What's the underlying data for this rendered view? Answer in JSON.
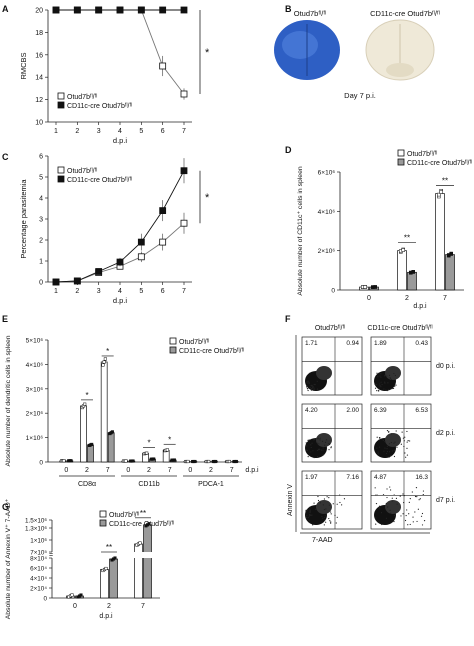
{
  "panel_letters": [
    "A",
    "B",
    "C",
    "D",
    "E",
    "F",
    "G"
  ],
  "colors": {
    "filled": "#111111",
    "open": "#ffffff",
    "gray_bar": "#9a9a9a",
    "axis": "#222222",
    "brain_blue": "#2e5fc4",
    "brain_white": "#efe9d8"
  },
  "legend": {
    "wt": "Otud7bᶠˡ/ᶠˡ",
    "cko": "CD11c-cre Otud7bᶠˡ/ᶠˡ"
  },
  "panelB": {
    "label_wt": "Otud7bᶠˡ/ᶠˡ",
    "label_cko": "CD11c-cre Otud7bᶠˡ/ᶠˡ",
    "caption": "Day 7 p.i."
  },
  "panelF": {
    "col_wt": "Otud7bᶠˡ/ᶠˡ",
    "col_cko": "CD11c-cre Otud7bᶠˡ/ᶠˡ",
    "row_labels": [
      "d0 p.i.",
      "d2 p.i.",
      "d7 p.i."
    ],
    "ylabel": "Annexin V",
    "xlabel": "7-AAD",
    "quads": [
      {
        "wt_ul": "1.71",
        "wt_ur": "0.94",
        "cko_ul": "1.89",
        "cko_ur": "0.43"
      },
      {
        "wt_ul": "4.20",
        "wt_ur": "2.00",
        "cko_ul": "6.39",
        "cko_ur": "6.53"
      },
      {
        "wt_ul": "1.97",
        "wt_ur": "7.16",
        "cko_ul": "4.87",
        "cko_ur": "16.3"
      }
    ]
  },
  "chart_data": [
    {
      "id": "A",
      "type": "line",
      "xlabel": "d.p.i",
      "ylabel": "RMCBS",
      "x": [
        1,
        2,
        3,
        4,
        5,
        6,
        7
      ],
      "xticks": [
        "1",
        "2",
        "3",
        "4",
        "5",
        "6",
        "7"
      ],
      "ylim": [
        10,
        20
      ],
      "yticks": [
        "10",
        "12",
        "14",
        "16",
        "18",
        "20"
      ],
      "series": [
        {
          "name": "Otud7bᶠˡ/ᶠˡ",
          "marker": "open",
          "values": [
            20,
            20,
            20,
            20,
            20,
            15,
            12.5
          ],
          "err": [
            0,
            0,
            0,
            0,
            0,
            0.9,
            0.5
          ]
        },
        {
          "name": "CD11c-cre Otud7bᶠˡ/ᶠˡ",
          "marker": "filled",
          "values": [
            20,
            20,
            20,
            20,
            20,
            20,
            20
          ],
          "err": [
            0,
            0,
            0,
            0,
            0,
            0,
            0
          ]
        }
      ],
      "significance": "*"
    },
    {
      "id": "C",
      "type": "line",
      "xlabel": "d.p.i",
      "ylabel": "Percentage parasitemia",
      "x": [
        1,
        2,
        3,
        4,
        5,
        6,
        7
      ],
      "xticks": [
        "1",
        "2",
        "3",
        "4",
        "5",
        "6",
        "7"
      ],
      "ylim": [
        0,
        6
      ],
      "yticks": [
        "0",
        "1",
        "2",
        "3",
        "4",
        "5",
        "6"
      ],
      "series": [
        {
          "name": "Otud7bᶠˡ/ᶠˡ",
          "marker": "open",
          "values": [
            0,
            0.05,
            0.45,
            0.75,
            1.2,
            1.9,
            2.8
          ],
          "err": [
            0,
            0,
            0.1,
            0.15,
            0.25,
            0.4,
            0.5
          ]
        },
        {
          "name": "CD11c-cre Otud7bᶠˡ/ᶠˡ",
          "marker": "filled",
          "values": [
            0,
            0.05,
            0.5,
            0.95,
            1.9,
            3.4,
            5.3
          ],
          "err": [
            0,
            0,
            0.1,
            0.2,
            0.4,
            0.5,
            0.6
          ]
        }
      ],
      "significance": "*"
    },
    {
      "id": "D",
      "type": "bar",
      "xlabel": "d.p.i",
      "ylabel": "Absolute number of CD11c⁺ cells in spleen",
      "categories": [
        "0",
        "2",
        "7"
      ],
      "ylim": [
        0,
        6000000
      ],
      "yticks": [
        "0",
        "2×10⁶",
        "4×10⁶",
        "6×10⁶"
      ],
      "series": [
        {
          "name": "Otud7bᶠˡ/ᶠˡ",
          "values": [
            150000,
            2000000,
            4900000
          ]
        },
        {
          "name": "CD11c-cre Otud7bᶠˡ/ᶠˡ",
          "values": [
            150000,
            900000,
            1800000
          ]
        }
      ],
      "significance": [
        "",
        "**",
        "**"
      ]
    },
    {
      "id": "E",
      "type": "bar",
      "xlabel": "d.p.i",
      "ylabel": "Absolute number of dendritic cells in spleen",
      "groups": [
        "CD8α",
        "CD11b",
        "PDCA-1"
      ],
      "categories": [
        "0",
        "2",
        "7",
        "0",
        "2",
        "7",
        "0",
        "2",
        "7"
      ],
      "ylim": [
        0,
        5000000
      ],
      "yticks": [
        "0",
        "1×10⁶",
        "2×10⁶",
        "3×10⁶",
        "4×10⁶",
        "5×10⁶"
      ],
      "series": [
        {
          "name": "Otud7bᶠˡ/ᶠˡ",
          "values": [
            50000,
            2300000,
            4100000,
            40000,
            350000,
            480000,
            20000,
            20000,
            20000
          ]
        },
        {
          "name": "CD11c-cre Otud7bᶠˡ/ᶠˡ",
          "values": [
            50000,
            700000,
            1200000,
            40000,
            120000,
            80000,
            20000,
            20000,
            20000
          ]
        }
      ],
      "significance": [
        "",
        "*",
        "*",
        "",
        "*",
        "*",
        "",
        "",
        ""
      ]
    },
    {
      "id": "G",
      "type": "bar",
      "xlabel": "d.p.i",
      "ylabel": "Absolute number of Annexin V⁺ 7-AAD⁺",
      "categories": [
        "0",
        "2",
        "7"
      ],
      "yticks": [
        "0",
        "2×10⁴",
        "4×10⁴",
        "6×10⁴",
        "8×10⁴",
        "7×10⁵",
        "1×10⁶",
        "1.3×10⁶",
        "1.5×10⁶"
      ],
      "series": [
        {
          "name": "Otud7bᶠˡ/ᶠˡ",
          "values": [
            4000,
            57000,
            900000
          ]
        },
        {
          "name": "CD11c-cre Otud7bᶠˡ/ᶠˡ",
          "values": [
            4000,
            78000,
            1380000
          ]
        }
      ],
      "significance": [
        "",
        "**",
        "**"
      ]
    }
  ]
}
